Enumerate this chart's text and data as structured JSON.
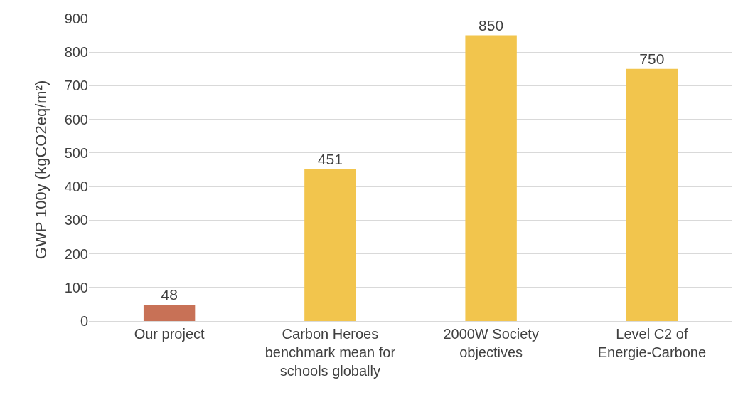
{
  "chart_data": {
    "type": "bar",
    "ylabel": "GWP 100y (kgCO2eq/m²)",
    "categories": [
      "Our project",
      "Carbon Heroes benchmark mean for schools globally",
      "2000W Society objectives",
      "Level C2 of Energie-Carbone"
    ],
    "values": [
      48,
      451,
      850,
      750
    ],
    "colors": [
      "#c87156",
      "#f2c54d",
      "#f2c54d",
      "#f2c54d"
    ],
    "ylim": [
      0,
      900
    ],
    "yticks": [
      0,
      100,
      200,
      300,
      400,
      500,
      600,
      700,
      800,
      900
    ],
    "grid": "y",
    "data_labels": true,
    "legend": false
  }
}
